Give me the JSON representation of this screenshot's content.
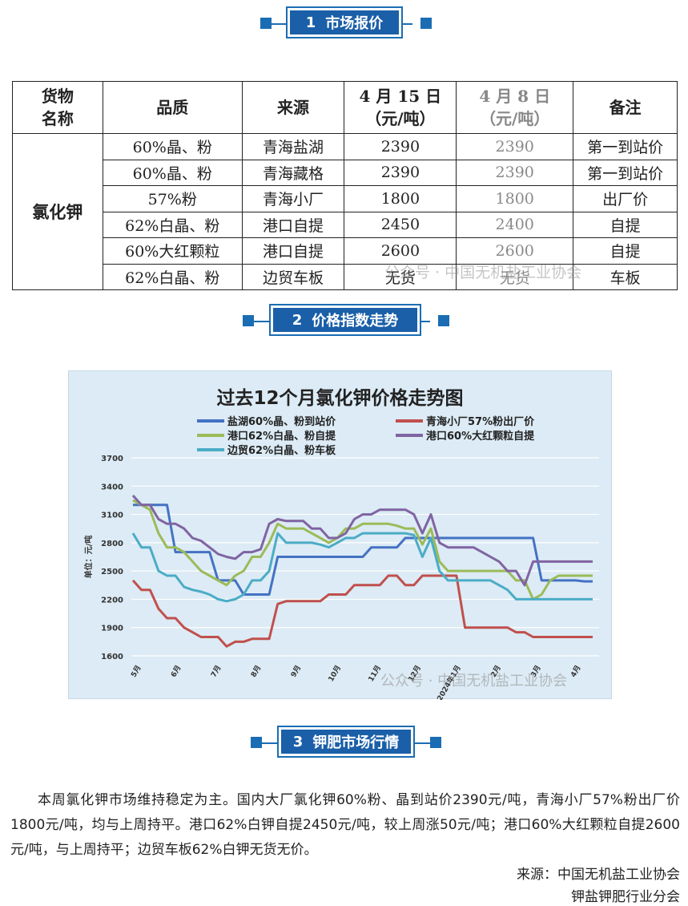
{
  "sections": [
    {
      "num": "1",
      "title": "市场报价"
    },
    {
      "num": "2",
      "title": "价格指数走势"
    },
    {
      "num": "3",
      "title": "钾肥市场行情"
    }
  ],
  "table": {
    "headers": {
      "goods": [
        "货物",
        "名称"
      ],
      "quality": "品质",
      "source": "来源",
      "current": [
        "4 月 15 日",
        "（元/吨）"
      ],
      "previous": [
        "4 月 8 日",
        "（元/吨）"
      ],
      "remark": "备注"
    },
    "goods_name": "氯化钾",
    "rows": [
      {
        "quality": "60%晶、粉",
        "source": "青海盐湖",
        "current": "2390",
        "previous": "2390",
        "remark": "第一到站价"
      },
      {
        "quality": "60%晶、粉",
        "source": "青海藏格",
        "current": "2390",
        "previous": "2390",
        "remark": "第一到站价"
      },
      {
        "quality": "57%粉",
        "source": "青海小厂",
        "current": "1800",
        "previous": "1800",
        "remark": "出厂价"
      },
      {
        "quality": "62%白晶、粉",
        "source": "港口自提",
        "current": "2450",
        "previous": "2400",
        "remark": "自提"
      },
      {
        "quality": "60%大红颗粒",
        "source": "港口自提",
        "current": "2600",
        "previous": "2600",
        "remark": "自提"
      },
      {
        "quality": "62%白晶、粉",
        "source": "边贸车板",
        "current": "无货",
        "previous": "无货",
        "remark": "车板"
      }
    ],
    "watermark": "公众号 · 中国无机盐工业协会"
  },
  "chart_data": {
    "type": "line",
    "title": "过去12个月氯化钾价格走势图",
    "ylabel": "单位：元/吨",
    "ylim": [
      1600,
      3700
    ],
    "yticks": [
      "1600",
      "1900",
      "2200",
      "2500",
      "2800",
      "3100",
      "3400",
      "3700"
    ],
    "x_tick_labels": [
      "5月",
      "6月",
      "7月",
      "8月",
      "9月",
      "10月",
      "11月",
      "12月",
      "2024年1月",
      "2月",
      "3月",
      "4月"
    ],
    "grid": true,
    "legend_position": "top",
    "series": [
      {
        "name": "盐湖60%晶、粉到站价",
        "color": "#4472c4",
        "values": [
          3200,
          3200,
          3200,
          3200,
          3200,
          2700,
          2700,
          2700,
          2700,
          2700,
          2400,
          2400,
          2400,
          2250,
          2250,
          2250,
          2250,
          2650,
          2650,
          2650,
          2650,
          2650,
          2650,
          2650,
          2650,
          2650,
          2650,
          2650,
          2750,
          2750,
          2750,
          2750,
          2850,
          2850,
          2850,
          2850,
          2850,
          2850,
          2850,
          2850,
          2850,
          2850,
          2850,
          2850,
          2850,
          2850,
          2850,
          2850,
          2400,
          2400,
          2400,
          2400,
          2400,
          2390,
          2390
        ]
      },
      {
        "name": "青海小厂57%粉出厂价",
        "color": "#c0504d",
        "values": [
          2400,
          2300,
          2300,
          2100,
          2000,
          2000,
          1900,
          1850,
          1800,
          1800,
          1800,
          1700,
          1750,
          1750,
          1780,
          1780,
          1780,
          2150,
          2180,
          2180,
          2180,
          2180,
          2180,
          2250,
          2250,
          2250,
          2350,
          2350,
          2350,
          2350,
          2450,
          2450,
          2350,
          2350,
          2450,
          2450,
          2450,
          2450,
          2450,
          1900,
          1900,
          1900,
          1900,
          1900,
          1900,
          1850,
          1850,
          1800,
          1800,
          1800,
          1800,
          1800,
          1800,
          1800,
          1800
        ]
      },
      {
        "name": "港口62%白晶、粉自提",
        "color": "#9bbb59",
        "values": [
          3250,
          3200,
          3150,
          2900,
          2750,
          2750,
          2700,
          2600,
          2500,
          2450,
          2400,
          2350,
          2450,
          2500,
          2650,
          2650,
          2800,
          3000,
          2950,
          2950,
          2950,
          2900,
          2850,
          2800,
          2850,
          2950,
          2950,
          3000,
          3000,
          3000,
          3000,
          2980,
          2950,
          2950,
          2780,
          2950,
          2600,
          2500,
          2500,
          2500,
          2500,
          2500,
          2500,
          2500,
          2500,
          2400,
          2400,
          2200,
          2250,
          2400,
          2450,
          2450,
          2450,
          2450,
          2450
        ]
      },
      {
        "name": "港口60%大红颗粒自提",
        "color": "#8064a2",
        "values": [
          3300,
          3200,
          3200,
          3050,
          3000,
          3000,
          2950,
          2850,
          2820,
          2750,
          2680,
          2650,
          2630,
          2700,
          2700,
          2730,
          3000,
          3050,
          3030,
          3030,
          3030,
          2950,
          2950,
          2850,
          2850,
          2900,
          3050,
          3100,
          3100,
          3150,
          3150,
          3150,
          3150,
          3100,
          2900,
          3100,
          2800,
          2750,
          2750,
          2750,
          2750,
          2700,
          2650,
          2600,
          2500,
          2500,
          2350,
          2600,
          2600,
          2600,
          2600,
          2600,
          2600,
          2600,
          2600
        ]
      },
      {
        "name": "边贸62%白晶、粉车板",
        "color": "#4bacc6",
        "values": [
          2900,
          2750,
          2750,
          2500,
          2450,
          2450,
          2330,
          2300,
          2280,
          2250,
          2200,
          2180,
          2200,
          2250,
          2400,
          2400,
          2500,
          2900,
          2800,
          2800,
          2800,
          2800,
          2780,
          2750,
          2800,
          2850,
          2850,
          2900,
          2900,
          2900,
          2900,
          2900,
          2900,
          2880,
          2650,
          2850,
          2500,
          2400,
          2400,
          2400,
          2400,
          2400,
          2400,
          2350,
          2300,
          2200,
          2200,
          2200,
          2200,
          2200,
          2200,
          2200,
          2200,
          2200,
          2200
        ]
      }
    ],
    "watermark": "公众号 · 中国无机盐工业协会"
  },
  "paragraph": "本周氯化钾市场维持稳定为主。国内大厂氯化钾60%粉、晶到站价2390元/吨，青海小厂57%粉出厂价1800元/吨，均与上周持平。港口62%白钾自提2450元/吨，较上周涨50元/吨；港口60%大红颗粒自提2600元/吨，与上周持平；边贸车板62%白钾无货无价。",
  "source": {
    "line1": "来源：中国无机盐工业协会",
    "line2": "钾盐钾肥行业分会"
  }
}
